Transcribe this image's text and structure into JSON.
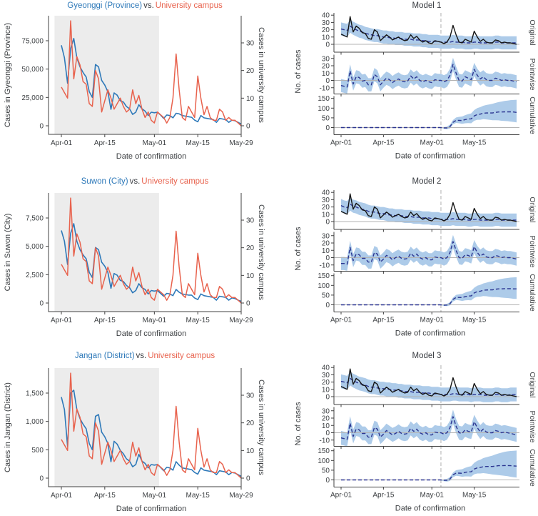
{
  "colors": {
    "region_line": "#2e79b9",
    "campus_line": "#e8624d",
    "title_vs": "#3a3d42",
    "observed_line": "#151515",
    "predicted_line": "#2b3591",
    "band_fill": "#adcbe9",
    "shade_fill": "#ececec",
    "zero_line": "#b3b3b3",
    "vline": "#bdbdbd",
    "spine": "#404040",
    "text": "#3d4043"
  },
  "campus_series": [
    14,
    12,
    10,
    38,
    17,
    25,
    22,
    16,
    15,
    8,
    7,
    20,
    17,
    5,
    9,
    13,
    10,
    6,
    8,
    10,
    7,
    5,
    6,
    13,
    8,
    11,
    6,
    3,
    5,
    2,
    1,
    5,
    4,
    3,
    1,
    3,
    10,
    26,
    13,
    3,
    2,
    7,
    5,
    3,
    18,
    10,
    4,
    7,
    3,
    2,
    2,
    6,
    5,
    2,
    3,
    2,
    2,
    1,
    0
  ],
  "chart_data": [
    {
      "type": "line",
      "panel": "left",
      "title_parts": {
        "region": "Gyeonggi (Province)",
        "vs": "vs.",
        "campus": "University campus"
      },
      "xlabel": "Date of confirmation",
      "ylabel_left": "Cases in Gyeonggi (Province)",
      "ylabel_right": "Cases in university campus",
      "x_ticks": {
        "labels": [
          "Apr-01",
          "Apr-15",
          "May-01",
          "May-15",
          "May-29"
        ],
        "days": [
          0,
          14,
          30,
          44,
          58
        ]
      },
      "yticks_left": {
        "values": [
          0,
          25000,
          50000,
          75000
        ],
        "labels": [
          "0",
          "25,000",
          "50,000",
          "75,000"
        ],
        "axis_max": 75000
      },
      "yticks_right": {
        "values": [
          0,
          10,
          20,
          30
        ],
        "axis_max": 30
      },
      "shaded_days": [
        -2.2,
        31.5
      ],
      "series": [
        {
          "name": "Gyeonggi (Province)",
          "axis": "left",
          "values": [
            71000,
            60000,
            37500,
            68000,
            77000,
            60000,
            52000,
            47000,
            43000,
            30000,
            25000,
            54000,
            52000,
            40000,
            36000,
            30000,
            14500,
            29000,
            27000,
            22000,
            21000,
            17000,
            15000,
            10000,
            12000,
            18500,
            15000,
            13000,
            9000,
            12000,
            11500,
            12000,
            9500,
            6500,
            9500,
            9000,
            7000,
            11000,
            10500,
            9000,
            8500,
            8000,
            7500,
            5000,
            3500,
            9000,
            7000,
            6500,
            6000,
            5500,
            3000,
            6500,
            6000,
            5500,
            3000,
            5000,
            4500,
            3000,
            1500
          ]
        },
        {
          "name": "University campus",
          "axis": "right",
          "values_ref": "campus_series"
        }
      ]
    },
    {
      "type": "line",
      "panel": "right",
      "title": "Model 1",
      "xlabel": "Date of confirmation",
      "ylabel": "No. of cases",
      "x_ticks": {
        "labels": [
          "Apr-01",
          "Apr-15",
          "May-01",
          "May-15"
        ],
        "days": [
          0,
          14,
          30,
          44
        ]
      },
      "intervention_day": 33,
      "band_halfwidth": 9,
      "subplots": [
        {
          "name": "Original",
          "yticks": [
            0,
            10,
            20,
            30,
            40
          ],
          "observed_ref": "campus_series",
          "predicted": [
            21,
            20,
            19,
            25,
            22,
            20,
            18,
            17,
            15,
            14,
            13,
            12,
            12,
            11,
            10,
            10,
            9,
            9,
            8,
            8,
            8,
            7,
            7,
            7,
            6,
            6,
            6,
            5,
            5,
            4,
            4,
            4,
            4,
            3,
            3,
            3,
            3,
            4,
            3,
            3,
            3,
            2,
            2,
            2,
            3,
            3,
            2,
            2,
            2,
            2,
            2,
            3,
            3,
            2,
            2,
            2,
            2,
            2,
            2
          ]
        },
        {
          "name": "Pointwise",
          "yticks": [
            -10,
            0,
            10,
            20,
            30
          ],
          "derived": "observed_minus_predicted"
        },
        {
          "name": "Cumulative",
          "yticks": [
            0,
            50,
            100,
            150
          ],
          "tail_start": 33,
          "values_tail": [
            0,
            -2,
            -2,
            5,
            27,
            37,
            37,
            36,
            41,
            44,
            45,
            60,
            67,
            69,
            74,
            75,
            75,
            75,
            78,
            80,
            80,
            81,
            81,
            81,
            80,
            78
          ],
          "upper_tail": [
            2,
            3,
            5,
            15,
            39,
            52,
            55,
            57,
            64,
            69,
            73,
            90,
            100,
            105,
            112,
            116,
            119,
            122,
            127,
            131,
            134,
            137,
            139,
            141,
            142,
            143
          ],
          "lower_tail": [
            -2,
            -6,
            -8,
            -4,
            16,
            24,
            22,
            19,
            22,
            23,
            22,
            35,
            40,
            40,
            43,
            42,
            40,
            38,
            38,
            37,
            35,
            34,
            33,
            31,
            29,
            27
          ]
        }
      ]
    },
    {
      "type": "line",
      "panel": "left",
      "title_parts": {
        "region": "Suwon (City)",
        "vs": "vs.",
        "campus": "University campus"
      },
      "xlabel": "Date of confirmation",
      "ylabel_left": "Cases in Suwon (City)",
      "ylabel_right": "Cases in university campus",
      "x_ticks": {
        "labels": [
          "Apr-01",
          "Apr-15",
          "May-01",
          "May-15",
          "May-29"
        ],
        "days": [
          0,
          14,
          30,
          44,
          58
        ]
      },
      "yticks_left": {
        "values": [
          0,
          2500,
          5000,
          7500
        ],
        "labels": [
          "0",
          "2,500",
          "5,000",
          "7,500"
        ],
        "axis_max": 7500
      },
      "yticks_right": {
        "values": [
          0,
          10,
          20,
          30
        ],
        "axis_max": 30
      },
      "shaded_days": [
        -2.2,
        31.5
      ],
      "series": [
        {
          "name": "Suwon (City)",
          "axis": "left",
          "values": [
            6400,
            5450,
            3400,
            6150,
            7000,
            5450,
            4700,
            4250,
            3900,
            2700,
            2250,
            4900,
            4700,
            3600,
            3250,
            2700,
            1300,
            2600,
            2450,
            2000,
            1900,
            1550,
            1350,
            900,
            1100,
            1700,
            1350,
            1200,
            800,
            1100,
            1050,
            1100,
            850,
            600,
            850,
            800,
            650,
            1200,
            950,
            800,
            750,
            700,
            700,
            450,
            300,
            800,
            650,
            600,
            550,
            500,
            250,
            600,
            550,
            500,
            250,
            450,
            400,
            250,
            150
          ]
        },
        {
          "name": "University campus",
          "axis": "right",
          "values_ref": "campus_series"
        }
      ]
    },
    {
      "type": "line",
      "panel": "right",
      "title": "Model 2",
      "xlabel": "Date of confirmation",
      "ylabel": "No. of cases",
      "x_ticks": {
        "labels": [
          "Apr-01",
          "Apr-15",
          "May-01",
          "May-15"
        ],
        "days": [
          0,
          14,
          30,
          44
        ]
      },
      "intervention_day": 33,
      "band_halfwidth": 9,
      "subplots": [
        {
          "name": "Original",
          "yticks": [
            0,
            10,
            20,
            30,
            40
          ],
          "observed_ref": "campus_series",
          "predicted": [
            22,
            20,
            19,
            24,
            21,
            20,
            18,
            17,
            16,
            14,
            13,
            13,
            12,
            11,
            11,
            10,
            9,
            9,
            8,
            8,
            8,
            7,
            7,
            7,
            6,
            6,
            6,
            5,
            5,
            5,
            4,
            4,
            4,
            3,
            3,
            3,
            3,
            4,
            3,
            3,
            3,
            3,
            2,
            2,
            3,
            3,
            2,
            2,
            2,
            2,
            2,
            3,
            3,
            2,
            2,
            2,
            2,
            2,
            2
          ]
        },
        {
          "name": "Pointwise",
          "yticks": [
            -10,
            0,
            10,
            20,
            30
          ],
          "derived": "observed_minus_predicted"
        },
        {
          "name": "Cumulative",
          "yticks": [
            0,
            50,
            100,
            150
          ],
          "tail_start": 33,
          "values_tail": [
            0,
            -2,
            -1,
            6,
            28,
            38,
            38,
            37,
            42,
            45,
            46,
            61,
            68,
            70,
            75,
            76,
            77,
            77,
            80,
            82,
            82,
            83,
            83,
            83,
            82,
            82
          ],
          "upper_tail": [
            2,
            3,
            5,
            14,
            38,
            51,
            54,
            56,
            63,
            68,
            72,
            88,
            98,
            103,
            110,
            114,
            118,
            121,
            126,
            130,
            133,
            136,
            138,
            140,
            141,
            142
          ],
          "lower_tail": [
            -2,
            -6,
            -7,
            -3,
            17,
            25,
            23,
            20,
            23,
            24,
            23,
            36,
            41,
            42,
            45,
            44,
            42,
            40,
            40,
            39,
            37,
            36,
            35,
            33,
            31,
            30
          ]
        }
      ]
    },
    {
      "type": "line",
      "panel": "left",
      "title_parts": {
        "region": "Jangan (District)",
        "vs": "vs.",
        "campus": "University campus"
      },
      "xlabel": "Date of confirmation",
      "ylabel_left": "Cases in Jangan (District)",
      "ylabel_right": "Cases in university campus",
      "x_ticks": {
        "labels": [
          "Apr-01",
          "Apr-15",
          "May-01",
          "May-15",
          "May-29"
        ],
        "days": [
          0,
          14,
          30,
          44,
          58
        ]
      },
      "yticks_left": {
        "values": [
          0,
          500,
          1000,
          1500
        ],
        "labels": [
          "0",
          "500",
          "1,000",
          "1,500"
        ],
        "axis_max": 1500
      },
      "yticks_right": {
        "values": [
          0,
          10,
          20,
          30
        ],
        "axis_max": 30
      },
      "shaded_days": [
        -2.2,
        31.5
      ],
      "series": [
        {
          "name": "Jangan (District)",
          "axis": "left",
          "values": [
            1430,
            1210,
            560,
            1500,
            1550,
            1210,
            1050,
            950,
            870,
            610,
            500,
            1090,
            1120,
            810,
            730,
            610,
            290,
            650,
            600,
            490,
            430,
            340,
            300,
            200,
            240,
            420,
            300,
            260,
            180,
            240,
            230,
            240,
            190,
            130,
            190,
            180,
            140,
            290,
            230,
            180,
            170,
            160,
            150,
            100,
            70,
            180,
            140,
            130,
            120,
            110,
            60,
            130,
            120,
            110,
            60,
            100,
            90,
            60,
            30
          ]
        },
        {
          "name": "University campus",
          "axis": "right",
          "values_ref": "campus_series"
        }
      ]
    },
    {
      "type": "line",
      "panel": "right",
      "title": "Model 3",
      "xlabel": "Date of confirmation",
      "ylabel": "No. of cases",
      "x_ticks": {
        "labels": [
          "Apr-01",
          "Apr-15",
          "May-01",
          "May-15"
        ],
        "days": [
          0,
          14,
          30,
          44
        ]
      },
      "intervention_day": 33,
      "band_halfwidth": 9.5,
      "subplots": [
        {
          "name": "Original",
          "yticks": [
            0,
            10,
            20,
            30,
            40
          ],
          "observed_ref": "campus_series",
          "predicted": [
            21,
            20,
            19,
            25,
            22,
            20,
            18,
            17,
            16,
            14,
            13,
            13,
            12,
            11,
            11,
            10,
            10,
            9,
            9,
            8,
            8,
            7,
            7,
            7,
            6,
            6,
            6,
            5,
            5,
            5,
            4,
            4,
            4,
            3,
            3,
            3,
            3,
            4,
            4,
            3,
            3,
            3,
            3,
            2,
            3,
            3,
            3,
            2,
            2,
            2,
            2,
            3,
            3,
            2,
            2,
            2,
            3,
            3,
            3
          ]
        },
        {
          "name": "Pointwise",
          "yticks": [
            -10,
            0,
            10,
            20,
            30
          ],
          "derived": "observed_minus_predicted"
        },
        {
          "name": "Cumulative",
          "yticks": [
            0,
            50,
            100,
            150
          ],
          "tail_start": 33,
          "values_tail": [
            0,
            -2,
            -2,
            5,
            26,
            35,
            35,
            34,
            39,
            41,
            42,
            56,
            62,
            64,
            68,
            69,
            69,
            69,
            71,
            73,
            73,
            74,
            74,
            73,
            72,
            71
          ],
          "upper_tail": [
            2,
            3,
            5,
            15,
            38,
            50,
            53,
            55,
            62,
            67,
            71,
            88,
            98,
            104,
            112,
            117,
            121,
            125,
            131,
            136,
            140,
            144,
            147,
            149,
            150,
            151
          ],
          "lower_tail": [
            -3,
            -7,
            -9,
            -5,
            14,
            21,
            19,
            16,
            18,
            18,
            17,
            29,
            33,
            33,
            35,
            33,
            31,
            28,
            27,
            25,
            23,
            21,
            19,
            16,
            14,
            12
          ]
        }
      ]
    }
  ]
}
